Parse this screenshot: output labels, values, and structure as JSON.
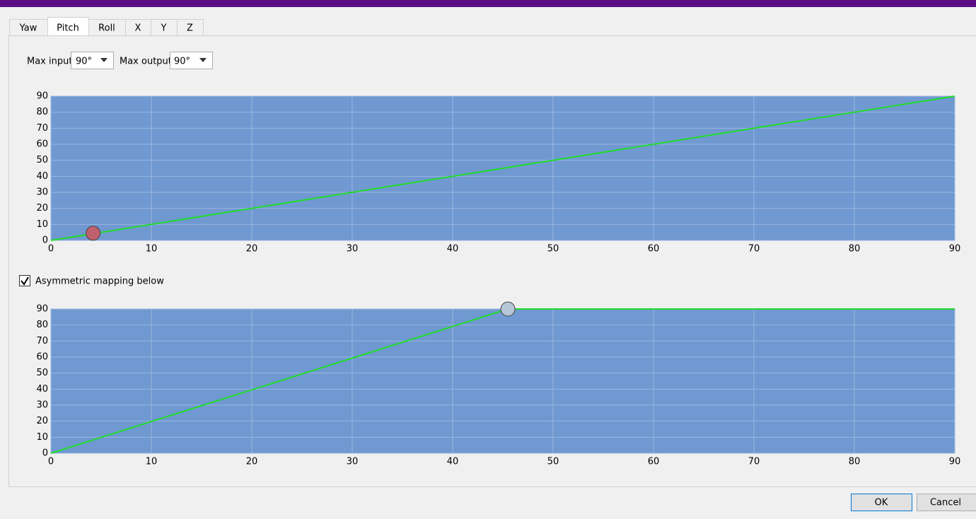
{
  "tabs": [
    "Yaw",
    "Pitch",
    "Roll",
    "X",
    "Y",
    "Z"
  ],
  "active_tab": 1,
  "controls": {
    "max_input_label": "Max input",
    "max_input_value": "90°",
    "max_output_label": "Max output",
    "max_output_value": "90°"
  },
  "checkbox": {
    "label": "Asymmetric mapping below",
    "checked": true
  },
  "buttons": [
    "OK",
    "Cancel"
  ],
  "chart_data": [
    {
      "type": "line",
      "xlim": [
        0,
        90
      ],
      "ylim": [
        0,
        90
      ],
      "xticks": [
        0,
        10,
        20,
        30,
        40,
        50,
        60,
        70,
        80,
        90
      ],
      "yticks": [
        0,
        10,
        20,
        30,
        40,
        50,
        60,
        70,
        80,
        90
      ],
      "grid": true,
      "background": "#7099d1",
      "series": [
        {
          "color": "#1fdc2a",
          "x": [
            0,
            90
          ],
          "values": [
            0,
            90
          ]
        }
      ],
      "points": [
        {
          "color": "#c0606c",
          "x": [
            4.2
          ],
          "values": [
            4.5
          ]
        }
      ]
    },
    {
      "type": "line",
      "xlim": [
        0,
        90
      ],
      "ylim": [
        0,
        90
      ],
      "xticks": [
        0,
        10,
        20,
        30,
        40,
        50,
        60,
        70,
        80,
        90
      ],
      "yticks": [
        0,
        10,
        20,
        30,
        40,
        50,
        60,
        70,
        80,
        90
      ],
      "grid": true,
      "background": "#7099d1",
      "series": [
        {
          "color": "#1fdc2a",
          "x": [
            0,
            45.5,
            90
          ],
          "values": [
            0,
            90,
            90
          ]
        }
      ],
      "points": [
        {
          "color": "#b7c6d6",
          "x": [
            45.5
          ],
          "values": [
            90
          ]
        }
      ]
    }
  ]
}
